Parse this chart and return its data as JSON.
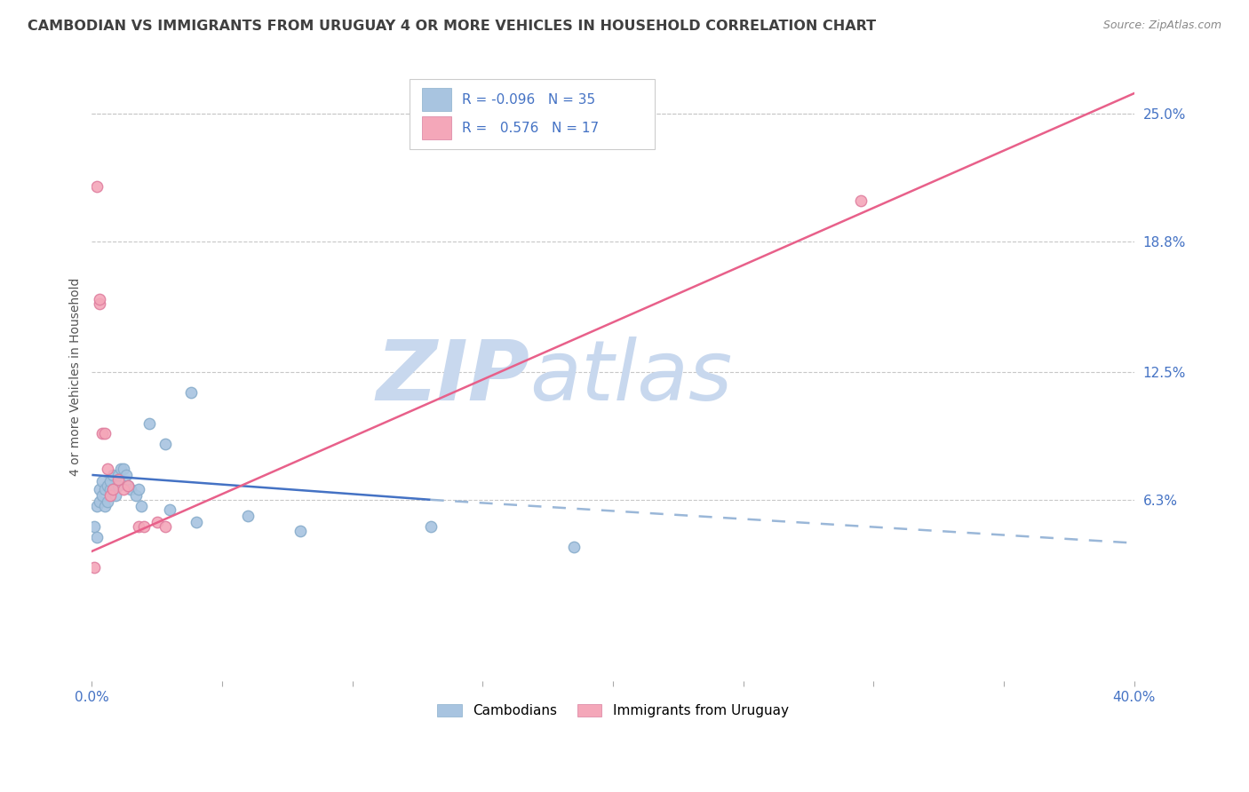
{
  "title": "CAMBODIAN VS IMMIGRANTS FROM URUGUAY 4 OR MORE VEHICLES IN HOUSEHOLD CORRELATION CHART",
  "source": "Source: ZipAtlas.com",
  "ylabel": "4 or more Vehicles in Household",
  "yticks_labels": [
    "6.3%",
    "12.5%",
    "18.8%",
    "25.0%"
  ],
  "ytick_vals": [
    0.063,
    0.125,
    0.188,
    0.25
  ],
  "xmin": 0.0,
  "xmax": 0.4,
  "ymin": -0.025,
  "ymax": 0.27,
  "legend_r_cambodian": "-0.096",
  "legend_n_cambodian": "35",
  "legend_r_uruguay": "0.576",
  "legend_n_uruguay": "17",
  "cambodian_color": "#a8c4e0",
  "uruguay_color": "#f4a7b9",
  "trend_cambodian_solid_color": "#4472c4",
  "trend_cambodian_dash_color": "#9ab7d8",
  "trend_uruguay_color": "#e8608a",
  "watermark_zip": "ZIP",
  "watermark_atlas": "atlas",
  "watermark_color": "#c8d8ee",
  "background_color": "#ffffff",
  "grid_color": "#c8c8c8",
  "title_color": "#404040",
  "source_color": "#888888",
  "tick_color": "#4472c4",
  "ylabel_color": "#555555",
  "title_fontsize": 11.5,
  "tick_fontsize": 11,
  "cambodian_x": [
    0.001,
    0.002,
    0.002,
    0.003,
    0.003,
    0.004,
    0.004,
    0.005,
    0.005,
    0.006,
    0.006,
    0.007,
    0.007,
    0.008,
    0.008,
    0.009,
    0.01,
    0.01,
    0.011,
    0.012,
    0.013,
    0.014,
    0.015,
    0.017,
    0.018,
    0.019,
    0.022,
    0.028,
    0.03,
    0.038,
    0.04,
    0.06,
    0.08,
    0.13,
    0.185
  ],
  "cambodian_y": [
    0.05,
    0.045,
    0.06,
    0.062,
    0.068,
    0.065,
    0.072,
    0.06,
    0.068,
    0.062,
    0.07,
    0.068,
    0.072,
    0.068,
    0.075,
    0.065,
    0.07,
    0.075,
    0.078,
    0.078,
    0.075,
    0.07,
    0.068,
    0.065,
    0.068,
    0.06,
    0.1,
    0.09,
    0.058,
    0.115,
    0.052,
    0.055,
    0.048,
    0.05,
    0.04
  ],
  "uruguay_x": [
    0.001,
    0.002,
    0.003,
    0.004,
    0.005,
    0.006,
    0.007,
    0.008,
    0.01,
    0.012,
    0.014,
    0.018,
    0.02,
    0.025,
    0.028,
    0.295,
    0.003
  ],
  "uruguay_y": [
    0.03,
    0.215,
    0.158,
    0.095,
    0.095,
    0.078,
    0.065,
    0.068,
    0.073,
    0.068,
    0.07,
    0.05,
    0.05,
    0.052,
    0.05,
    0.208,
    0.16
  ],
  "trend_camb_x0": 0.0,
  "trend_camb_y0": 0.075,
  "trend_camb_x1": 0.13,
  "trend_camb_y1": 0.063,
  "trend_camb_x2": 0.4,
  "trend_camb_y2": 0.042,
  "trend_uru_x0": 0.0,
  "trend_uru_y0": 0.038,
  "trend_uru_x1": 0.4,
  "trend_uru_y1": 0.26
}
